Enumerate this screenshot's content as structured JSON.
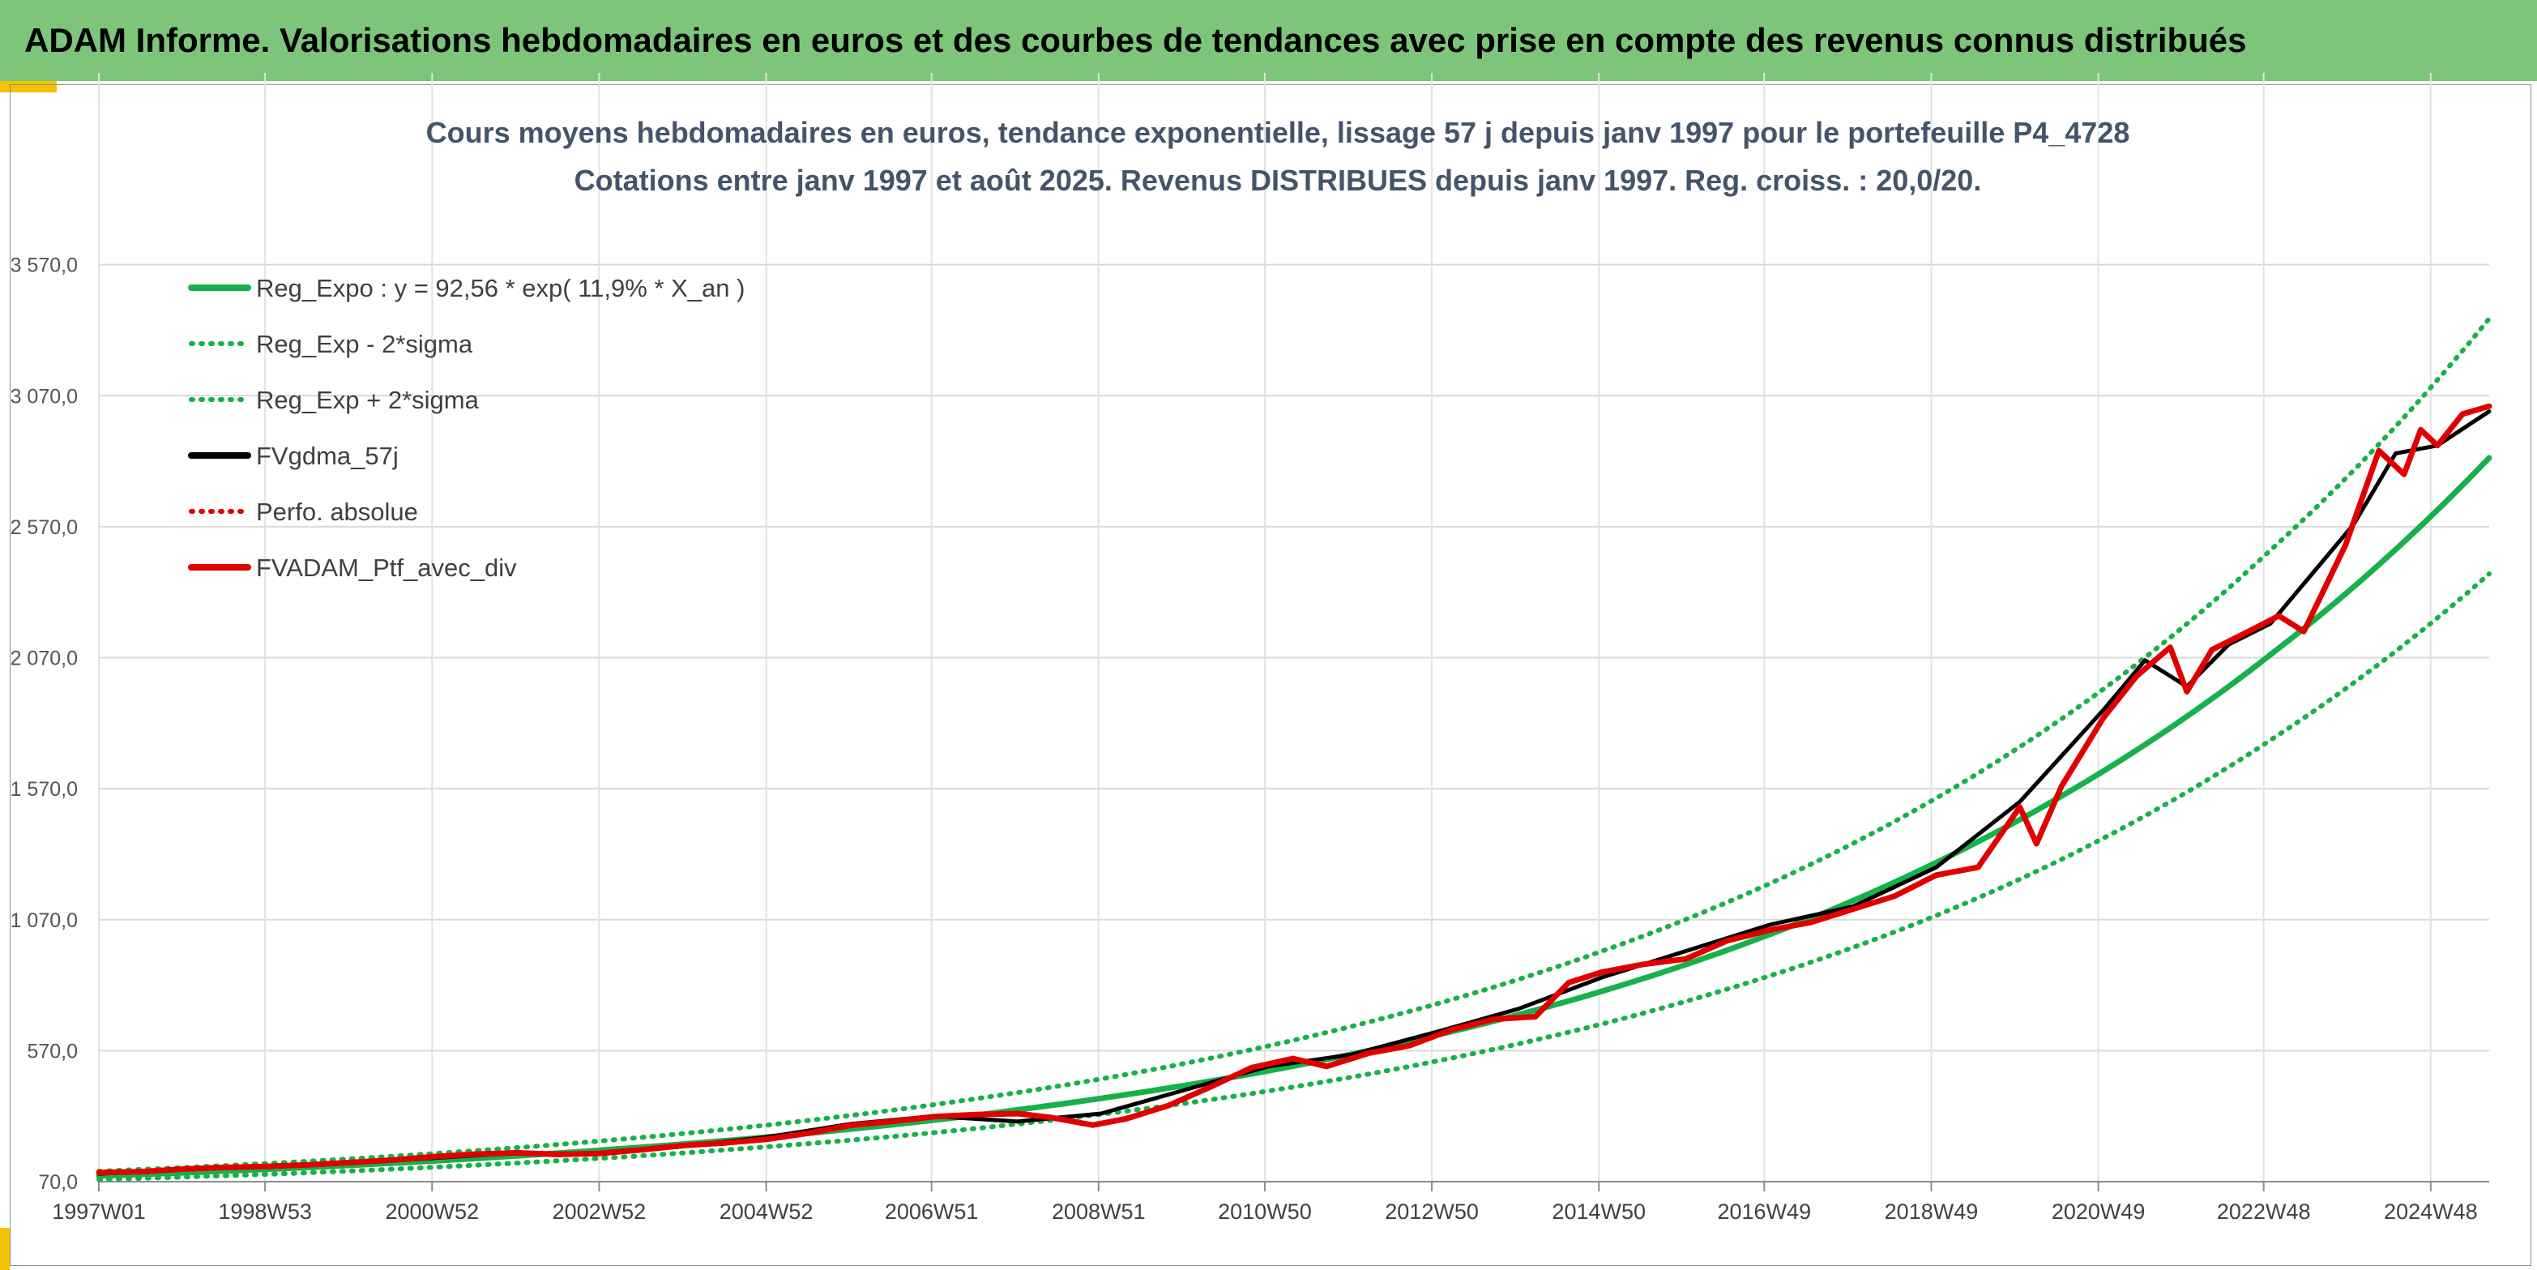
{
  "banner": {
    "title": "ADAM Informe. Valorisations hebdomadaires en euros et des courbes de tendances avec prise en compte des revenus connus distribués"
  },
  "colors": {
    "banner_bg": "#7dc57a",
    "accent": "#f3c200",
    "trend": "#17b14a",
    "trend_band": "#17b14a",
    "smoothed": "#000000",
    "perf": "#e00000",
    "portfolio": "#e00000"
  },
  "chart_data": {
    "type": "line",
    "title": "Cours moyens hebdomadaires en euros, tendance exponentielle, lissage 57 j depuis janv 1997 pour le portefeuille P4_4728",
    "subtitle": "Cotations entre janv 1997 et août 2025. Revenus DISTRIBUES depuis janv 1997. Reg. croiss. : 20,0/20.",
    "x_range": [
      1997.0,
      2025.62
    ],
    "ylim": [
      70,
      4070
    ],
    "y_ticks": [
      70,
      570,
      1070,
      1570,
      2070,
      2570,
      3070,
      3570
    ],
    "y_tick_labels": [
      "70,0",
      "570,0",
      "1 070,0",
      "1 570,0",
      "2 070,0",
      "2 570,0",
      "3 070,0",
      "3 570,0"
    ],
    "x_ticks": [
      1997.0,
      1998.99,
      2000.99,
      2002.99,
      2004.99,
      2006.97,
      2008.97,
      2010.96,
      2012.96,
      2014.96,
      2016.94,
      2018.94,
      2020.94,
      2022.92,
      2024.92
    ],
    "x_tick_labels": [
      "1997W01",
      "1998W53",
      "2000W52",
      "2002W52",
      "2004W52",
      "2006W51",
      "2008W51",
      "2010W50",
      "2012W50",
      "2014W50",
      "2016W49",
      "2018W49",
      "2020W49",
      "2022W48",
      "2024W48"
    ],
    "grid": true,
    "legend_position": "top-left",
    "legend": [
      {
        "label": "Reg_Expo : y = 92,56 * exp( 11,9% *  X_an )",
        "style": "solid",
        "color": "#17b14a"
      },
      {
        "label": "Reg_Exp - 2*sigma",
        "style": "dotted",
        "color": "#17b14a"
      },
      {
        "label": "Reg_Exp + 2*sigma",
        "style": "dotted",
        "color": "#17b14a"
      },
      {
        "label": "FVgdma_57j",
        "style": "solid",
        "color": "#000000"
      },
      {
        "label": "Perfo. absolue",
        "style": "dotted",
        "color": "#e00000"
      },
      {
        "label": "FVADAM_Ptf_avec_div",
        "style": "solid",
        "color": "#e00000"
      }
    ],
    "series": [
      {
        "name": "Reg_Expo : y = 92,56 * exp( 11,9% *  X_an )",
        "x": [
          1997,
          1999,
          2001,
          2003,
          2005,
          2007,
          2009,
          2011,
          2013,
          2015,
          2017,
          2019,
          2021,
          2023,
          2025.62
        ],
        "values": [
          92,
          117,
          149,
          190,
          240,
          305,
          388,
          493,
          628,
          797,
          1013,
          1288,
          1637,
          2081,
          2833
        ]
      },
      {
        "name": "Reg_Exp - 2*sigma",
        "x": [
          1997,
          1999,
          2001,
          2003,
          2005,
          2007,
          2009,
          2011,
          2013,
          2015,
          2017,
          2019,
          2021,
          2023,
          2025.62
        ],
        "values": [
          78,
          98,
          125,
          159,
          203,
          257,
          327,
          416,
          529,
          672,
          855,
          1086,
          1381,
          1755,
          2390
        ]
      },
      {
        "name": "Reg_Exp + 2*sigma",
        "x": [
          1997,
          1999,
          2001,
          2003,
          2005,
          2007,
          2009,
          2011,
          2013,
          2015,
          2017,
          2019,
          2021,
          2023,
          2025.62
        ],
        "values": [
          110,
          139,
          177,
          225,
          286,
          364,
          462,
          588,
          747,
          950,
          1207,
          1534,
          1950,
          2480,
          3364
        ]
      },
      {
        "name": "FVgdma_57j",
        "x": [
          1997,
          1998,
          1999,
          2000,
          2001,
          2002,
          2003,
          2004,
          2005,
          2006,
          2007,
          2008,
          2009,
          2010,
          2011,
          2012,
          2013,
          2014,
          2015,
          2016,
          2017,
          2018,
          2019,
          2020,
          2021,
          2021.5,
          2022,
          2022.5,
          2023,
          2024,
          2024.5,
          2025,
          2025.62
        ],
        "values": [
          100,
          118,
          126,
          140,
          160,
          180,
          175,
          205,
          240,
          290,
          320,
          300,
          330,
          420,
          510,
          555,
          640,
          730,
          850,
          950,
          1050,
          1120,
          1270,
          1520,
          1870,
          2060,
          1960,
          2120,
          2200,
          2580,
          2850,
          2880,
          3010
        ]
      },
      {
        "name": "FVADAM_Ptf_avec_div",
        "x": [
          1997,
          1997.5,
          1998,
          1998.5,
          1999,
          1999.5,
          2000,
          2000.5,
          2001,
          2001.5,
          2002,
          2002.5,
          2003,
          2003.5,
          2004,
          2004.5,
          2005,
          2005.5,
          2006,
          2006.5,
          2007,
          2007.5,
          2008,
          2008.4,
          2008.9,
          2009.3,
          2009.8,
          2010.3,
          2010.8,
          2011.3,
          2011.7,
          2012.2,
          2012.7,
          2013.2,
          2013.7,
          2014.2,
          2014.6,
          2015,
          2015.5,
          2016,
          2016.5,
          2017,
          2017.5,
          2018,
          2018.5,
          2019,
          2019.5,
          2020,
          2020.2,
          2020.5,
          2021,
          2021.4,
          2021.8,
          2022,
          2022.3,
          2022.8,
          2023.1,
          2023.4,
          2023.9,
          2024.3,
          2024.6,
          2024.8,
          2025,
          2025.3,
          2025.62
        ],
        "values": [
          105,
          108,
          118,
          124,
          128,
          134,
          143,
          152,
          165,
          175,
          180,
          174,
          178,
          192,
          208,
          218,
          232,
          255,
          285,
          300,
          318,
          326,
          330,
          315,
          286,
          310,
          360,
          430,
          505,
          540,
          510,
          560,
          590,
          650,
          690,
          700,
          830,
          870,
          900,
          920,
          990,
          1030,
          1060,
          1110,
          1160,
          1240,
          1270,
          1500,
          1360,
          1580,
          1840,
          2000,
          2110,
          1940,
          2100,
          2180,
          2230,
          2170,
          2500,
          2860,
          2770,
          2940,
          2880,
          3000,
          3030
        ]
      }
    ]
  }
}
